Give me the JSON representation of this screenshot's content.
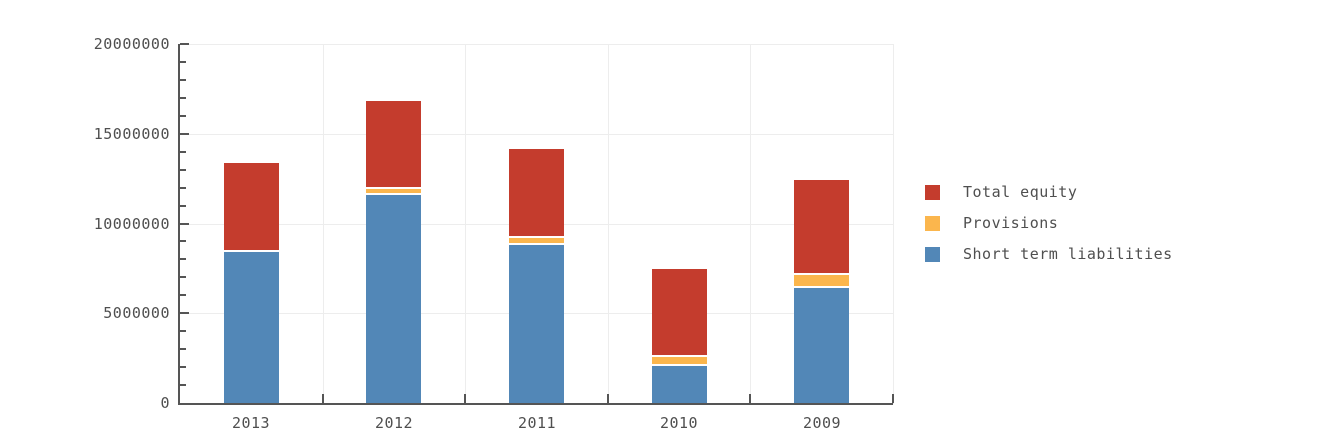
{
  "chart_data": {
    "type": "bar",
    "stacked": true,
    "title": "",
    "xlabel": "",
    "ylabel": "",
    "categories": [
      "2013",
      "2012",
      "2011",
      "2010",
      "2009"
    ],
    "series": [
      {
        "name": "Short term liabilities",
        "color": "#5287b7",
        "values": [
          8450000,
          11650000,
          8850000,
          2100000,
          6450000
        ]
      },
      {
        "name": "Provisions",
        "color": "#fbb64d",
        "values": [
          0,
          300000,
          400000,
          500000,
          750000
        ]
      },
      {
        "name": "Total equity",
        "color": "#c43c2d",
        "values": [
          4900000,
          4900000,
          4900000,
          4850000,
          5200000
        ]
      }
    ],
    "ylim": [
      0,
      20000000
    ],
    "ytick_labels": [
      "0",
      "5000000",
      "10000000",
      "15000000",
      "20000000"
    ],
    "ytick_major_step": 5000000,
    "ytick_minor_step": 1000000,
    "grid": true,
    "legend_position": "right"
  },
  "legend": {
    "items": [
      {
        "label": "Total equity",
        "color": "#c43c2d"
      },
      {
        "label": "Provisions",
        "color": "#fbb64d"
      },
      {
        "label": "Short term liabilities",
        "color": "#5287b7"
      }
    ]
  },
  "colors": {
    "background": "#ffffff",
    "axis": "#555555",
    "grid": "#ededed",
    "text": "#4f4f4f",
    "segment_separator": "#ffffff"
  }
}
